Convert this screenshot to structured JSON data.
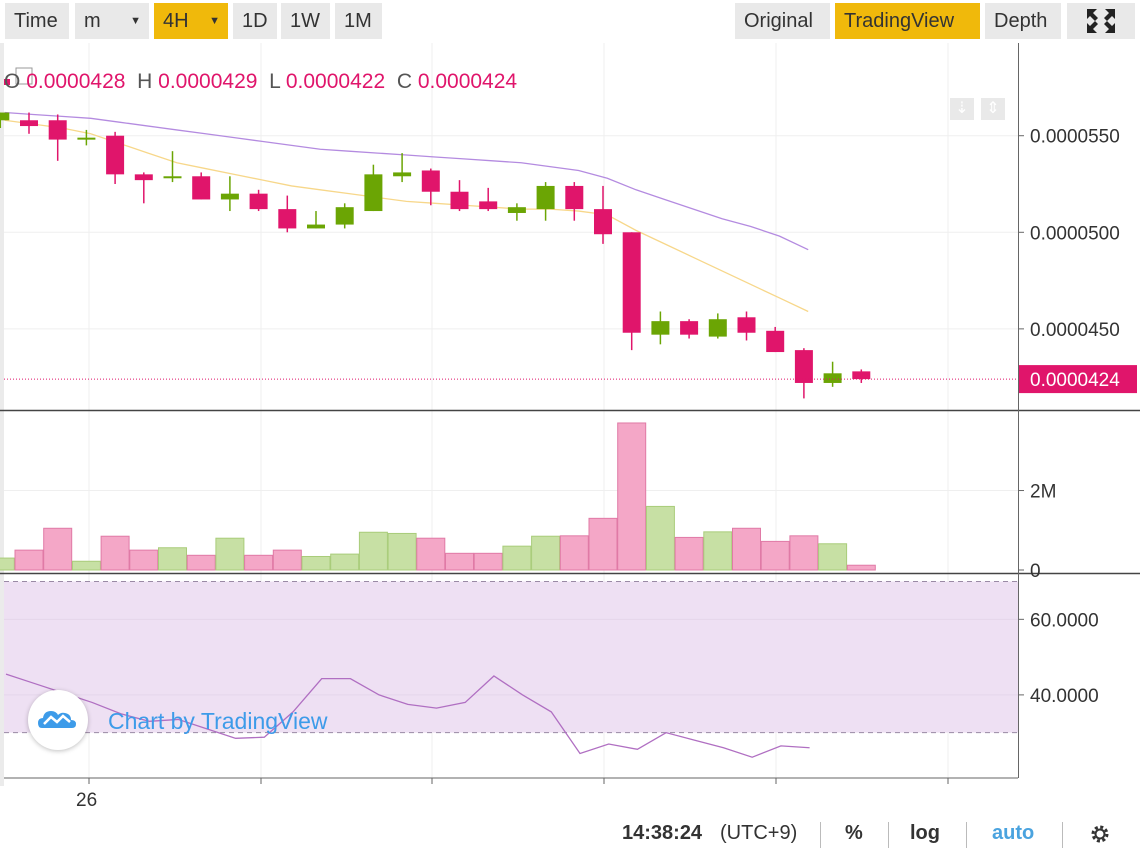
{
  "toolbar": {
    "time_label": "Time",
    "minute_select": "m",
    "hour_select": "4H",
    "day_label": "1D",
    "week_label": "1W",
    "month_label": "1M",
    "original_label": "Original",
    "tradingview_label": "TradingView",
    "depth_label": "Depth",
    "fullscreen_icon": "fullscreen-icon",
    "accent_color": "#f0b90b"
  },
  "legend": {
    "o_key": "O",
    "o_val": "0.0000428",
    "h_key": "H",
    "h_val": "0.0000429",
    "l_key": "L",
    "l_val": "0.0000422",
    "c_key": "C",
    "c_val": "0.0000424"
  },
  "watermark": {
    "text": "Chart by TradingView",
    "icon": "tradingview-cloud-icon"
  },
  "footer": {
    "time": "14:38:24",
    "tz": "(UTC+9)",
    "percent": "%",
    "log": "log",
    "auto": "auto",
    "settings_icon": "gear-icon"
  },
  "chart_data": [
    {
      "type": "candlestick",
      "y_ticks": [
        "0.0000550",
        "0.0000500",
        "0.0000450"
      ],
      "y_tick_values": [
        5.5e-05,
        5e-05,
        4.5e-05
      ],
      "ylim": [
        4.08e-05,
        5.98e-05
      ],
      "last_price_label": "0.0000424",
      "last_price": 4.24e-05,
      "x_tick_label": "26",
      "up_color": "#6ba504",
      "down_color": "#e0156b",
      "candles": [
        {
          "o": 5.58e-05,
          "h": 5.62e-05,
          "l": 5.54e-05,
          "c": 5.62e-05
        },
        {
          "o": 5.58e-05,
          "h": 5.62e-05,
          "l": 5.51e-05,
          "c": 5.55e-05
        },
        {
          "o": 5.58e-05,
          "h": 5.61e-05,
          "l": 5.37e-05,
          "c": 5.48e-05
        },
        {
          "o": 5.48e-05,
          "h": 5.53e-05,
          "l": 5.45e-05,
          "c": 5.49e-05
        },
        {
          "o": 5.5e-05,
          "h": 5.52e-05,
          "l": 5.25e-05,
          "c": 5.3e-05
        },
        {
          "o": 5.3e-05,
          "h": 5.31e-05,
          "l": 5.15e-05,
          "c": 5.27e-05
        },
        {
          "o": 5.28e-05,
          "h": 5.42e-05,
          "l": 5.26e-05,
          "c": 5.29e-05
        },
        {
          "o": 5.29e-05,
          "h": 5.31e-05,
          "l": 5.17e-05,
          "c": 5.17e-05
        },
        {
          "o": 5.17e-05,
          "h": 5.29e-05,
          "l": 5.11e-05,
          "c": 5.2e-05
        },
        {
          "o": 5.2e-05,
          "h": 5.22e-05,
          "l": 5.11e-05,
          "c": 5.12e-05
        },
        {
          "o": 5.12e-05,
          "h": 5.19e-05,
          "l": 5e-05,
          "c": 5.02e-05
        },
        {
          "o": 5.02e-05,
          "h": 5.11e-05,
          "l": 5.02e-05,
          "c": 5.04e-05
        },
        {
          "o": 5.04e-05,
          "h": 5.15e-05,
          "l": 5.02e-05,
          "c": 5.13e-05
        },
        {
          "o": 5.11e-05,
          "h": 5.35e-05,
          "l": 5.11e-05,
          "c": 5.3e-05
        },
        {
          "o": 5.29e-05,
          "h": 5.41e-05,
          "l": 5.26e-05,
          "c": 5.31e-05
        },
        {
          "o": 5.32e-05,
          "h": 5.33e-05,
          "l": 5.14e-05,
          "c": 5.21e-05
        },
        {
          "o": 5.21e-05,
          "h": 5.27e-05,
          "l": 5.11e-05,
          "c": 5.12e-05
        },
        {
          "o": 5.16e-05,
          "h": 5.23e-05,
          "l": 5.11e-05,
          "c": 5.12e-05
        },
        {
          "o": 5.1e-05,
          "h": 5.15e-05,
          "l": 5.06e-05,
          "c": 5.13e-05
        },
        {
          "o": 5.12e-05,
          "h": 5.26e-05,
          "l": 5.06e-05,
          "c": 5.24e-05
        },
        {
          "o": 5.24e-05,
          "h": 5.26e-05,
          "l": 5.06e-05,
          "c": 5.12e-05
        },
        {
          "o": 5.12e-05,
          "h": 5.24e-05,
          "l": 4.94e-05,
          "c": 4.99e-05
        },
        {
          "o": 5e-05,
          "h": 5e-05,
          "l": 4.39e-05,
          "c": 4.48e-05
        },
        {
          "o": 4.47e-05,
          "h": 4.59e-05,
          "l": 4.42e-05,
          "c": 4.54e-05
        },
        {
          "o": 4.54e-05,
          "h": 4.55e-05,
          "l": 4.45e-05,
          "c": 4.47e-05
        },
        {
          "o": 4.46e-05,
          "h": 4.58e-05,
          "l": 4.45e-05,
          "c": 4.55e-05
        },
        {
          "o": 4.56e-05,
          "h": 4.59e-05,
          "l": 4.44e-05,
          "c": 4.48e-05
        },
        {
          "o": 4.49e-05,
          "h": 4.51e-05,
          "l": 4.38e-05,
          "c": 4.38e-05
        },
        {
          "o": 4.39e-05,
          "h": 4.4e-05,
          "l": 4.14e-05,
          "c": 4.22e-05
        },
        {
          "o": 4.22e-05,
          "h": 4.33e-05,
          "l": 4.2e-05,
          "c": 4.27e-05
        },
        {
          "o": 4.28e-05,
          "h": 4.29e-05,
          "l": 4.22e-05,
          "c": 4.24e-05
        }
      ],
      "ma_fast": [
        5.58e-05,
        5.56e-05,
        5.54e-05,
        5.51e-05,
        5.46e-05,
        5.41e-05,
        5.36e-05,
        5.33e-05,
        5.3e-05,
        5.27e-05,
        5.24e-05,
        5.22e-05,
        5.2e-05,
        5.18e-05,
        5.16e-05,
        5.15e-05,
        5.14e-05,
        5.13e-05,
        5.12e-05,
        5.12e-05,
        5.11e-05,
        5.09e-05,
        5.01e-05,
        4.94e-05,
        4.87e-05,
        4.8e-05,
        4.73e-05,
        4.66e-05,
        4.59e-05
      ],
      "ma_slow": [
        5.62e-05,
        5.61e-05,
        5.6e-05,
        5.59e-05,
        5.57e-05,
        5.55e-05,
        5.53e-05,
        5.51e-05,
        5.49e-05,
        5.47e-05,
        5.45e-05,
        5.43e-05,
        5.42e-05,
        5.41e-05,
        5.4e-05,
        5.39e-05,
        5.38e-05,
        5.37e-05,
        5.36e-05,
        5.34e-05,
        5.32e-05,
        5.28e-05,
        5.22e-05,
        5.17e-05,
        5.12e-05,
        5.07e-05,
        5.03e-05,
        4.98e-05,
        4.91e-05
      ],
      "ma_fast_color": "#f7d78a",
      "ma_slow_color": "#b48be0"
    },
    {
      "type": "bar",
      "y_ticks": [
        "2M",
        "0"
      ],
      "y_tick_values": [
        2000000,
        0
      ],
      "ylim": [
        0,
        3800000
      ],
      "values": [
        300000,
        500000,
        1050000,
        220000,
        850000,
        500000,
        560000,
        370000,
        800000,
        370000,
        500000,
        340000,
        400000,
        950000,
        920000,
        800000,
        420000,
        420000,
        600000,
        850000,
        860000,
        1300000,
        3700000,
        1600000,
        820000,
        960000,
        1050000,
        720000,
        860000,
        660000,
        120000
      ],
      "up_color": "#c7e0a4",
      "down_color": "#f4a7c7"
    },
    {
      "type": "line",
      "y_ticks": [
        "60.0000",
        "40.0000"
      ],
      "y_tick_values": [
        60,
        40
      ],
      "ylim": [
        18,
        72
      ],
      "band": [
        30,
        70
      ],
      "x_start_index": 0,
      "values": [
        45.5,
        43,
        40.5,
        38,
        35,
        33,
        33.5,
        31,
        28.5,
        28.8,
        35.5,
        44.3,
        44.3,
        40,
        37.5,
        36.5,
        38,
        45,
        40,
        35.5,
        24.5,
        27,
        25.6,
        30,
        28,
        26,
        23.5,
        26.5,
        26
      ],
      "line_color": "#b06fc2",
      "band_color": "#eee0f3"
    }
  ]
}
